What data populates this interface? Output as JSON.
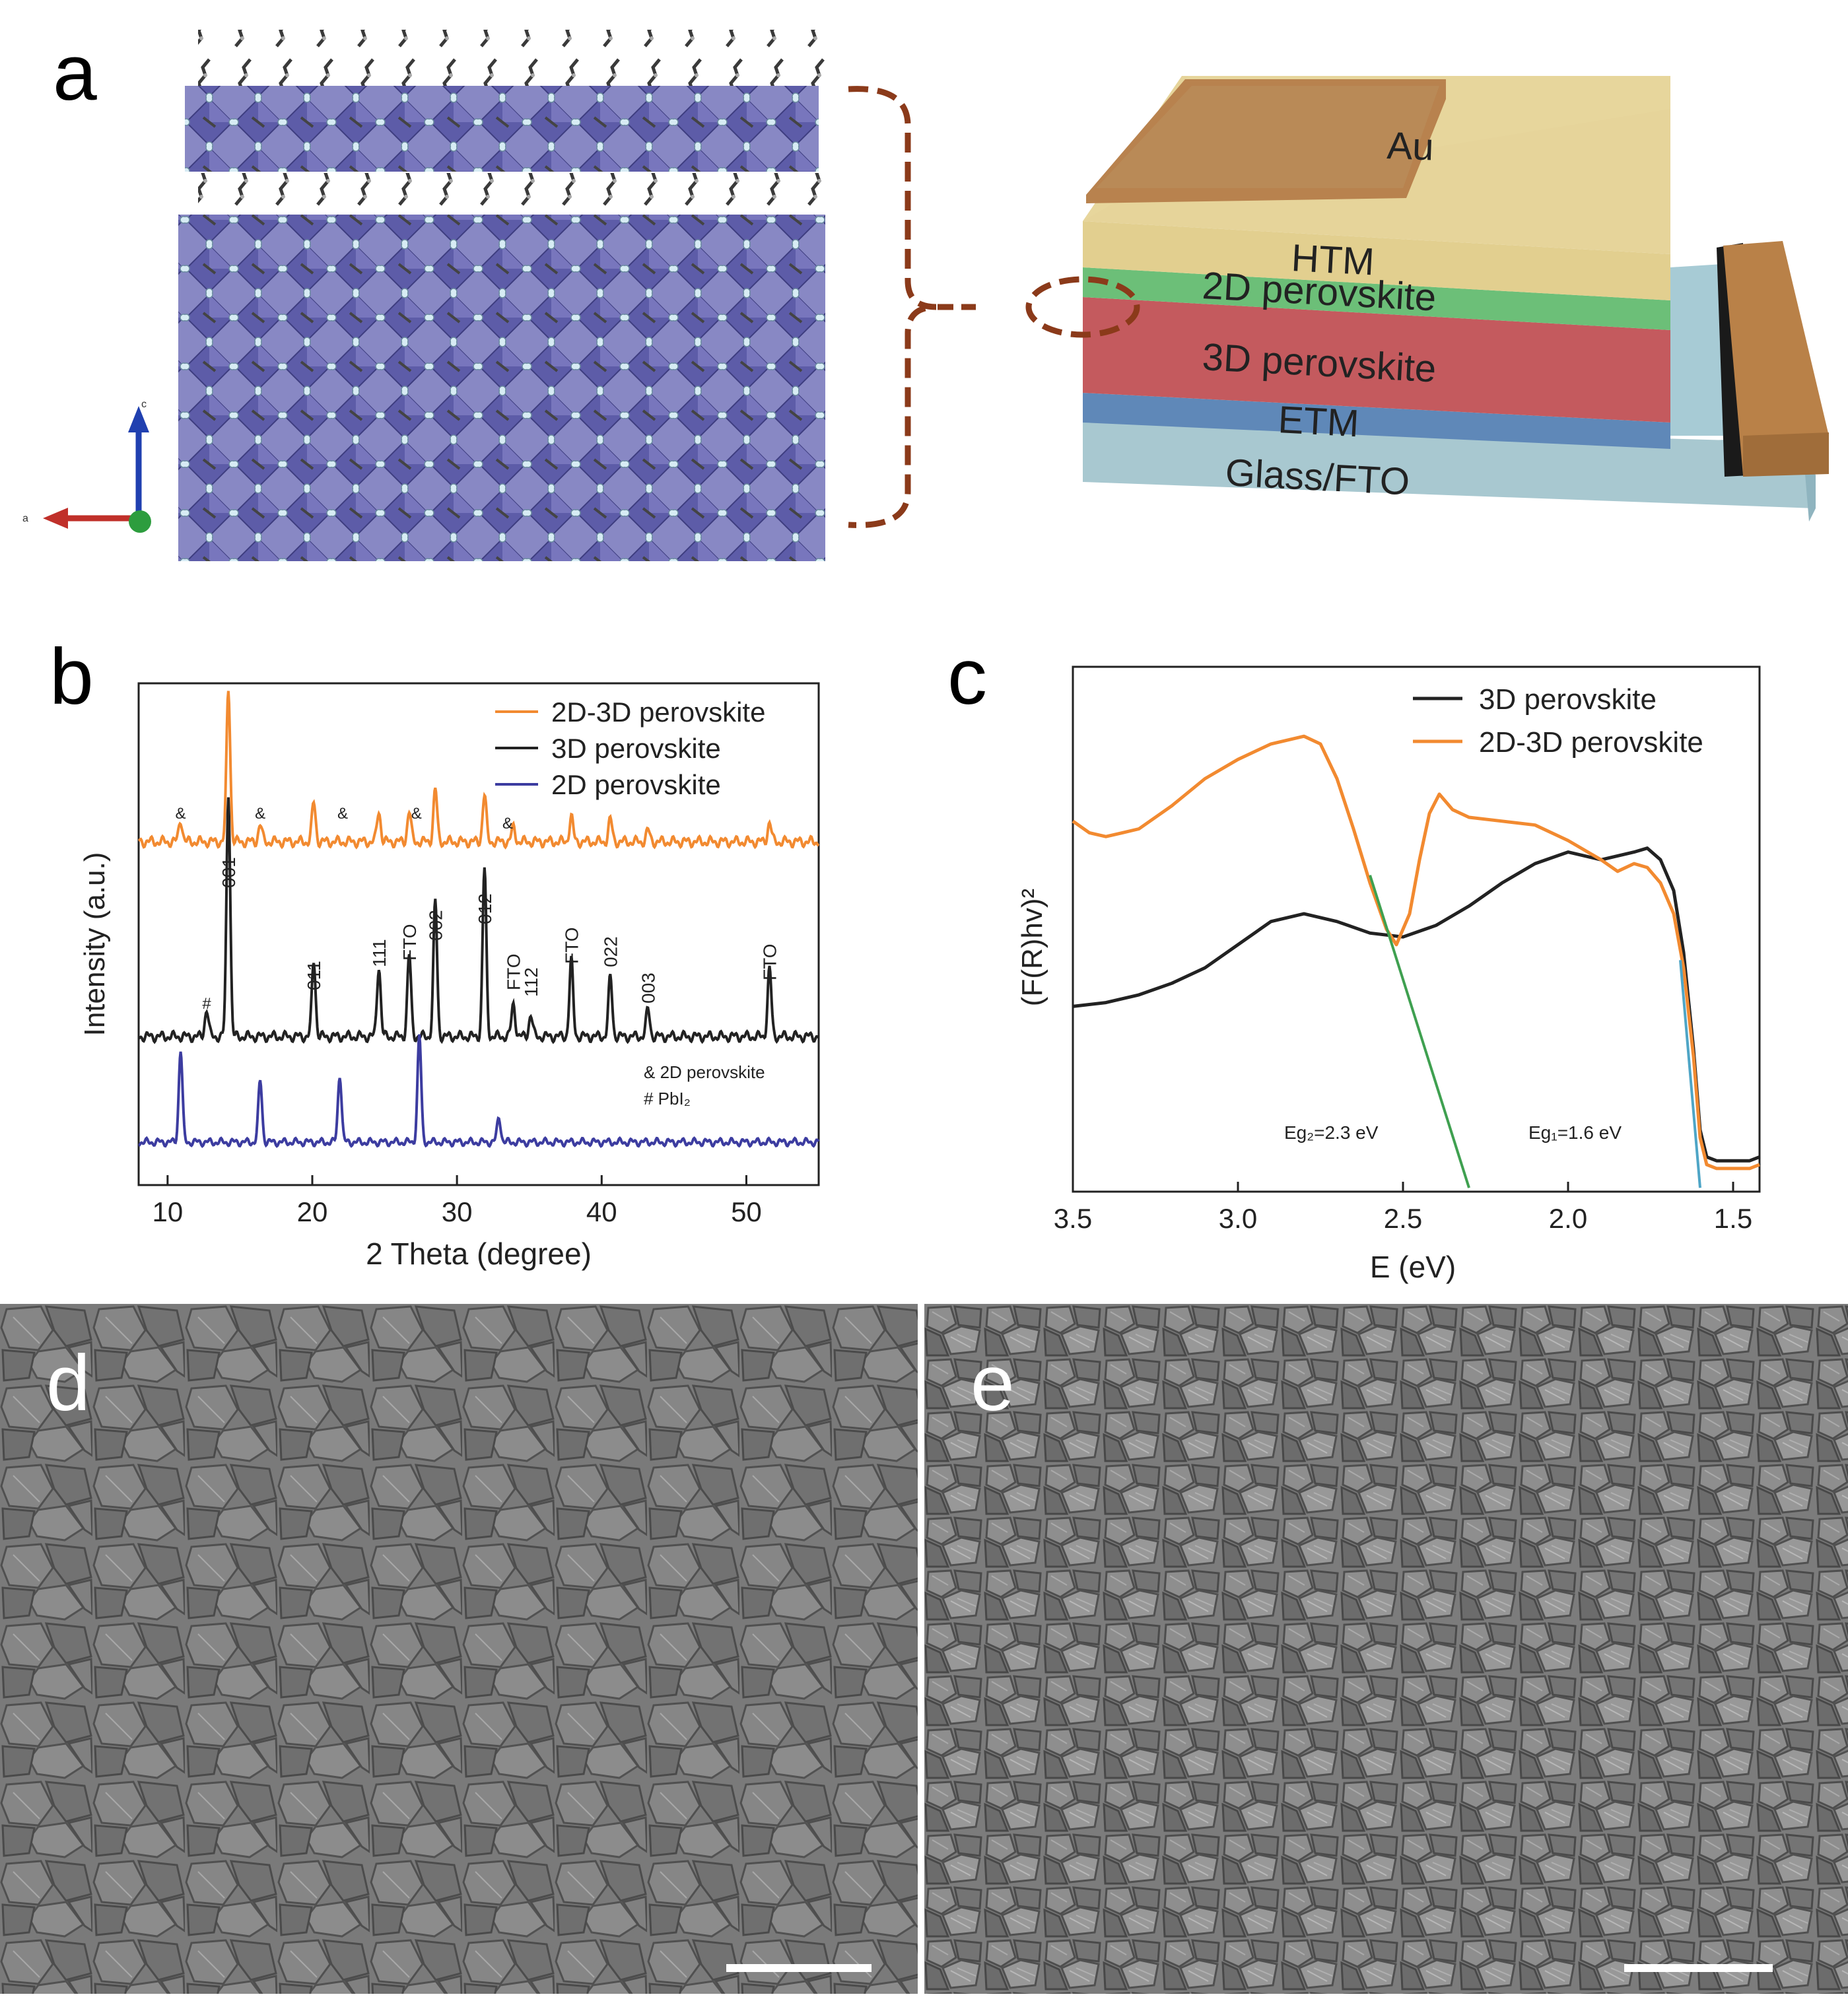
{
  "panels": {
    "a": "a",
    "b": "b",
    "c": "c",
    "d": "d",
    "e": "e"
  },
  "panel_a": {
    "device_layers": [
      "Au",
      "HTM",
      "2D perovskite",
      "3D perovskite",
      "ETM",
      "Glass/FTO"
    ],
    "axis_labels": [
      "c",
      "a"
    ],
    "colors": {
      "octahedra": "#6d6cb0",
      "au": "#b8824e",
      "htm": "#e2cf8f",
      "layer_2d": "#6cbf78",
      "layer_3d": "#c45a5e",
      "etm": "#5f88b8",
      "glass": "#a8c8d0",
      "bracket": "#8b3a1a"
    }
  },
  "panel_b": {
    "ylabel": "Intensity (a.u.)",
    "xlabel": "2 Theta (degree)",
    "legend": [
      "2D-3D perovskite",
      "3D perovskite",
      "2D perovskite"
    ],
    "xticks": [
      "10",
      "20",
      "30",
      "40",
      "50"
    ],
    "note1": "& 2D perovskite",
    "note2": "# PbI₂",
    "amp_marks": [
      {
        "x": 10.9,
        "label": "&"
      },
      {
        "x": 16.4,
        "label": "&"
      },
      {
        "x": 22.1,
        "label": "&"
      },
      {
        "x": 27.2,
        "label": "&"
      },
      {
        "x": 33.5,
        "label": "&"
      }
    ],
    "pbi2_marks": [
      {
        "x": 12.7,
        "label": "#"
      }
    ],
    "peak_labels": [
      {
        "x": 14.2,
        "label": "001"
      },
      {
        "x": 20.1,
        "label": "011"
      },
      {
        "x": 24.6,
        "label": "111"
      },
      {
        "x": 26.7,
        "label": "FTO"
      },
      {
        "x": 28.5,
        "label": "002"
      },
      {
        "x": 31.9,
        "label": "012"
      },
      {
        "x": 33.9,
        "label": "FTO"
      },
      {
        "x": 35.1,
        "label": "112"
      },
      {
        "x": 37.9,
        "label": "FTO"
      },
      {
        "x": 40.6,
        "label": "022"
      },
      {
        "x": 43.2,
        "label": "003"
      },
      {
        "x": 51.6,
        "label": "FTO"
      }
    ]
  },
  "panel_c": {
    "ylabel": "(F(R)hv)²",
    "xlabel": "E (eV)",
    "legend": [
      "3D perovskite",
      "2D-3D perovskite"
    ],
    "xticks": [
      "3.5",
      "3.0",
      "2.5",
      "2.0",
      "1.5"
    ],
    "eg2": "Eg₂=2.3 eV",
    "eg1": "Eg₁=1.6 eV"
  },
  "chart_data": [
    {
      "type": "line",
      "title": "",
      "xlabel": "2 Theta (degree)",
      "ylabel": "Intensity (a.u.)",
      "xlim": [
        8,
        55
      ],
      "series": [
        {
          "name": "2D-3D perovskite",
          "color": "#f28a30",
          "peaks": [
            [
              10.9,
              0.08
            ],
            [
              14.2,
              0.55
            ],
            [
              16.4,
              0.06
            ],
            [
              20.1,
              0.14
            ],
            [
              24.6,
              0.11
            ],
            [
              26.7,
              0.11
            ],
            [
              28.5,
              0.19
            ],
            [
              31.9,
              0.17
            ],
            [
              33.9,
              0.05
            ],
            [
              37.9,
              0.09
            ],
            [
              40.6,
              0.08
            ],
            [
              43.2,
              0.04
            ],
            [
              51.6,
              0.07
            ]
          ]
        },
        {
          "name": "3D perovskite",
          "color": "#222222",
          "peaks": [
            [
              12.7,
              0.1
            ],
            [
              14.2,
              0.9
            ],
            [
              20.1,
              0.28
            ],
            [
              24.6,
              0.26
            ],
            [
              26.7,
              0.3
            ],
            [
              28.5,
              0.5
            ],
            [
              31.9,
              0.62
            ],
            [
              33.9,
              0.12
            ],
            [
              35.1,
              0.08
            ],
            [
              37.9,
              0.28
            ],
            [
              40.6,
              0.22
            ],
            [
              43.2,
              0.1
            ],
            [
              51.6,
              0.25
            ]
          ]
        },
        {
          "name": "2D perovskite",
          "color": "#3c3ca0",
          "peaks": [
            [
              10.9,
              0.45
            ],
            [
              16.4,
              0.3
            ],
            [
              21.9,
              0.33
            ],
            [
              27.4,
              0.52
            ],
            [
              32.9,
              0.12
            ]
          ]
        }
      ]
    },
    {
      "type": "line",
      "title": "",
      "xlabel": "E (eV)",
      "ylabel": "(F(R)hv)²",
      "xlim": [
        3.5,
        1.42
      ],
      "series": [
        {
          "name": "3D perovskite",
          "color": "#222222",
          "x": [
            3.5,
            3.4,
            3.3,
            3.2,
            3.1,
            3.0,
            2.9,
            2.8,
            2.7,
            2.6,
            2.5,
            2.4,
            2.3,
            2.2,
            2.1,
            2.0,
            1.9,
            1.8,
            1.76,
            1.72,
            1.68,
            1.65,
            1.62,
            1.6,
            1.58,
            1.55,
            1.5,
            1.45,
            1.42
          ],
          "y": [
            0.46,
            0.47,
            0.49,
            0.52,
            0.56,
            0.62,
            0.68,
            0.7,
            0.68,
            0.65,
            0.64,
            0.67,
            0.72,
            0.78,
            0.83,
            0.86,
            0.84,
            0.86,
            0.87,
            0.84,
            0.76,
            0.6,
            0.35,
            0.14,
            0.07,
            0.06,
            0.06,
            0.06,
            0.07
          ]
        },
        {
          "name": "2D-3D perovskite",
          "color": "#f28a30",
          "x": [
            3.5,
            3.45,
            3.4,
            3.35,
            3.3,
            3.2,
            3.1,
            3.0,
            2.9,
            2.8,
            2.75,
            2.7,
            2.65,
            2.6,
            2.55,
            2.52,
            2.48,
            2.45,
            2.42,
            2.39,
            2.35,
            2.3,
            2.2,
            2.1,
            2.0,
            1.9,
            1.85,
            1.8,
            1.76,
            1.72,
            1.68,
            1.65,
            1.62,
            1.6,
            1.58,
            1.55,
            1.5,
            1.45,
            1.42
          ],
          "y": [
            0.94,
            0.91,
            0.9,
            0.91,
            0.92,
            0.98,
            1.05,
            1.1,
            1.14,
            1.16,
            1.14,
            1.05,
            0.92,
            0.78,
            0.66,
            0.62,
            0.7,
            0.84,
            0.96,
            1.01,
            0.97,
            0.95,
            0.94,
            0.93,
            0.89,
            0.84,
            0.81,
            0.83,
            0.82,
            0.78,
            0.7,
            0.56,
            0.33,
            0.12,
            0.05,
            0.04,
            0.04,
            0.04,
            0.05
          ]
        },
        {
          "name": "Eg2 fit",
          "color": "#3fa050",
          "x": [
            2.6,
            2.3
          ],
          "y": [
            0.8,
            -0.01
          ]
        },
        {
          "name": "Eg1 fit",
          "color": "#4ea5c6",
          "x": [
            1.66,
            1.6
          ],
          "y": [
            0.58,
            -0.01
          ]
        }
      ]
    }
  ]
}
